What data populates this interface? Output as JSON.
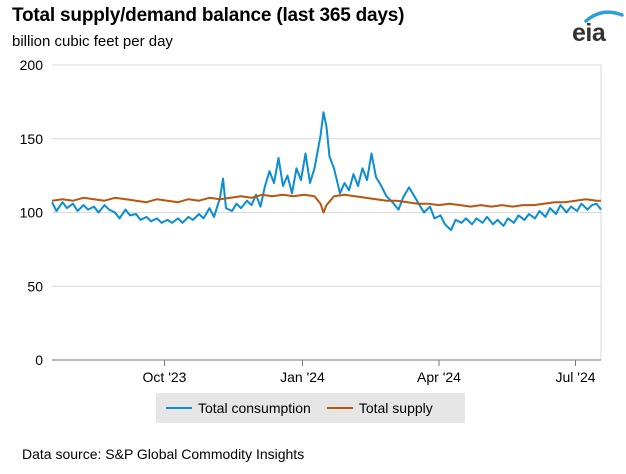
{
  "header": {
    "title": "Total supply/demand balance (last 365 days)",
    "subtitle": "billion cubic feet per day",
    "logo_text": "eia"
  },
  "footer": {
    "source": "Data source: S&P Global Commodity Insights"
  },
  "colors": {
    "consumption": "#0a8dd3",
    "supply": "#b8560e",
    "grid": "#d9d9d9",
    "axis": "#777777",
    "legend_bg": "#e6e6e6"
  },
  "chart_data": {
    "type": "line",
    "title": "Total supply/demand balance (last 365 days)",
    "ylabel": "billion cubic feet per day",
    "ylim": [
      0,
      200
    ],
    "yticks": [
      0,
      50,
      100,
      150,
      200
    ],
    "xlim": [
      "2023-07-18",
      "2024-07-18"
    ],
    "xticks": [
      {
        "date": "2023-10-01",
        "label": "Oct '23"
      },
      {
        "date": "2024-01-01",
        "label": "Jan '24"
      },
      {
        "date": "2024-04-01",
        "label": "Apr '24"
      },
      {
        "date": "2024-07-01",
        "label": "Jul '24"
      }
    ],
    "grid": true,
    "legend_position": "bottom",
    "series": [
      {
        "name": "Total consumption",
        "color": "#0a8dd3",
        "points": [
          [
            "2023-07-18",
            107
          ],
          [
            "2023-07-21",
            101
          ],
          [
            "2023-07-25",
            107
          ],
          [
            "2023-07-28",
            103
          ],
          [
            "2023-08-01",
            106
          ],
          [
            "2023-08-04",
            101
          ],
          [
            "2023-08-08",
            105
          ],
          [
            "2023-08-11",
            102
          ],
          [
            "2023-08-15",
            104
          ],
          [
            "2023-08-18",
            100
          ],
          [
            "2023-08-22",
            105
          ],
          [
            "2023-08-25",
            102
          ],
          [
            "2023-08-29",
            100
          ],
          [
            "2023-09-01",
            96
          ],
          [
            "2023-09-05",
            102
          ],
          [
            "2023-09-08",
            98
          ],
          [
            "2023-09-12",
            99
          ],
          [
            "2023-09-15",
            95
          ],
          [
            "2023-09-19",
            97
          ],
          [
            "2023-09-22",
            94
          ],
          [
            "2023-09-26",
            96
          ],
          [
            "2023-09-29",
            93
          ],
          [
            "2023-10-03",
            95
          ],
          [
            "2023-10-06",
            93
          ],
          [
            "2023-10-10",
            96
          ],
          [
            "2023-10-13",
            93
          ],
          [
            "2023-10-17",
            97
          ],
          [
            "2023-10-20",
            95
          ],
          [
            "2023-10-24",
            99
          ],
          [
            "2023-10-27",
            96
          ],
          [
            "2023-10-31",
            103
          ],
          [
            "2023-11-03",
            97
          ],
          [
            "2023-11-07",
            110
          ],
          [
            "2023-11-09",
            123
          ],
          [
            "2023-11-11",
            103
          ],
          [
            "2023-11-15",
            101
          ],
          [
            "2023-11-18",
            106
          ],
          [
            "2023-11-21",
            103
          ],
          [
            "2023-11-25",
            108
          ],
          [
            "2023-11-28",
            105
          ],
          [
            "2023-12-01",
            112
          ],
          [
            "2023-12-04",
            104
          ],
          [
            "2023-12-07",
            118
          ],
          [
            "2023-12-10",
            128
          ],
          [
            "2023-12-13",
            120
          ],
          [
            "2023-12-16",
            137
          ],
          [
            "2023-12-19",
            118
          ],
          [
            "2023-12-22",
            125
          ],
          [
            "2023-12-25",
            113
          ],
          [
            "2023-12-28",
            130
          ],
          [
            "2023-12-31",
            122
          ],
          [
            "2024-01-03",
            140
          ],
          [
            "2024-01-06",
            120
          ],
          [
            "2024-01-09",
            130
          ],
          [
            "2024-01-13",
            152
          ],
          [
            "2024-01-15",
            168
          ],
          [
            "2024-01-17",
            158
          ],
          [
            "2024-01-19",
            138
          ],
          [
            "2024-01-22",
            130
          ],
          [
            "2024-01-26",
            113
          ],
          [
            "2024-01-29",
            120
          ],
          [
            "2024-02-01",
            115
          ],
          [
            "2024-02-04",
            126
          ],
          [
            "2024-02-07",
            118
          ],
          [
            "2024-02-10",
            130
          ],
          [
            "2024-02-13",
            122
          ],
          [
            "2024-02-16",
            140
          ],
          [
            "2024-02-19",
            124
          ],
          [
            "2024-02-22",
            119
          ],
          [
            "2024-02-26",
            111
          ],
          [
            "2024-03-01",
            107
          ],
          [
            "2024-03-05",
            102
          ],
          [
            "2024-03-08",
            110
          ],
          [
            "2024-03-12",
            117
          ],
          [
            "2024-03-15",
            112
          ],
          [
            "2024-03-19",
            105
          ],
          [
            "2024-03-22",
            100
          ],
          [
            "2024-03-26",
            104
          ],
          [
            "2024-03-29",
            96
          ],
          [
            "2024-04-02",
            98
          ],
          [
            "2024-04-05",
            92
          ],
          [
            "2024-04-09",
            88
          ],
          [
            "2024-04-12",
            95
          ],
          [
            "2024-04-16",
            93
          ],
          [
            "2024-04-19",
            96
          ],
          [
            "2024-04-23",
            92
          ],
          [
            "2024-04-26",
            96
          ],
          [
            "2024-04-30",
            93
          ],
          [
            "2024-05-03",
            97
          ],
          [
            "2024-05-07",
            92
          ],
          [
            "2024-05-10",
            95
          ],
          [
            "2024-05-14",
            91
          ],
          [
            "2024-05-17",
            96
          ],
          [
            "2024-05-21",
            93
          ],
          [
            "2024-05-24",
            98
          ],
          [
            "2024-05-28",
            95
          ],
          [
            "2024-05-31",
            99
          ],
          [
            "2024-06-04",
            96
          ],
          [
            "2024-06-07",
            101
          ],
          [
            "2024-06-11",
            97
          ],
          [
            "2024-06-14",
            103
          ],
          [
            "2024-06-18",
            99
          ],
          [
            "2024-06-21",
            105
          ],
          [
            "2024-06-25",
            100
          ],
          [
            "2024-06-28",
            104
          ],
          [
            "2024-07-02",
            101
          ],
          [
            "2024-07-05",
            106
          ],
          [
            "2024-07-09",
            102
          ],
          [
            "2024-07-12",
            105
          ],
          [
            "2024-07-15",
            106
          ],
          [
            "2024-07-18",
            102
          ]
        ]
      },
      {
        "name": "Total supply",
        "color": "#b8560e",
        "points": [
          [
            "2023-07-18",
            108
          ],
          [
            "2023-07-25",
            109
          ],
          [
            "2023-08-01",
            108
          ],
          [
            "2023-08-08",
            110
          ],
          [
            "2023-08-15",
            109
          ],
          [
            "2023-08-22",
            108
          ],
          [
            "2023-08-29",
            110
          ],
          [
            "2023-09-05",
            109
          ],
          [
            "2023-09-12",
            108
          ],
          [
            "2023-09-19",
            107
          ],
          [
            "2023-09-26",
            109
          ],
          [
            "2023-10-03",
            108
          ],
          [
            "2023-10-10",
            107
          ],
          [
            "2023-10-17",
            109
          ],
          [
            "2023-10-24",
            108
          ],
          [
            "2023-10-31",
            110
          ],
          [
            "2023-11-07",
            109
          ],
          [
            "2023-11-14",
            110
          ],
          [
            "2023-11-21",
            111
          ],
          [
            "2023-11-28",
            110
          ],
          [
            "2023-12-05",
            112
          ],
          [
            "2023-12-12",
            111
          ],
          [
            "2023-12-19",
            112
          ],
          [
            "2023-12-26",
            111
          ],
          [
            "2024-01-02",
            112
          ],
          [
            "2024-01-09",
            111
          ],
          [
            "2024-01-13",
            106
          ],
          [
            "2024-01-15",
            100
          ],
          [
            "2024-01-17",
            105
          ],
          [
            "2024-01-22",
            111
          ],
          [
            "2024-01-29",
            112
          ],
          [
            "2024-02-05",
            111
          ],
          [
            "2024-02-12",
            110
          ],
          [
            "2024-02-19",
            109
          ],
          [
            "2024-02-26",
            108
          ],
          [
            "2024-03-04",
            108
          ],
          [
            "2024-03-11",
            107
          ],
          [
            "2024-03-18",
            106
          ],
          [
            "2024-03-25",
            106
          ],
          [
            "2024-04-01",
            105
          ],
          [
            "2024-04-08",
            106
          ],
          [
            "2024-04-15",
            105
          ],
          [
            "2024-04-22",
            104
          ],
          [
            "2024-04-29",
            105
          ],
          [
            "2024-05-06",
            104
          ],
          [
            "2024-05-13",
            105
          ],
          [
            "2024-05-20",
            104
          ],
          [
            "2024-05-27",
            105
          ],
          [
            "2024-06-03",
            105
          ],
          [
            "2024-06-10",
            106
          ],
          [
            "2024-06-17",
            107
          ],
          [
            "2024-06-24",
            107
          ],
          [
            "2024-07-01",
            108
          ],
          [
            "2024-07-08",
            109
          ],
          [
            "2024-07-15",
            108
          ],
          [
            "2024-07-18",
            108
          ]
        ]
      }
    ]
  }
}
